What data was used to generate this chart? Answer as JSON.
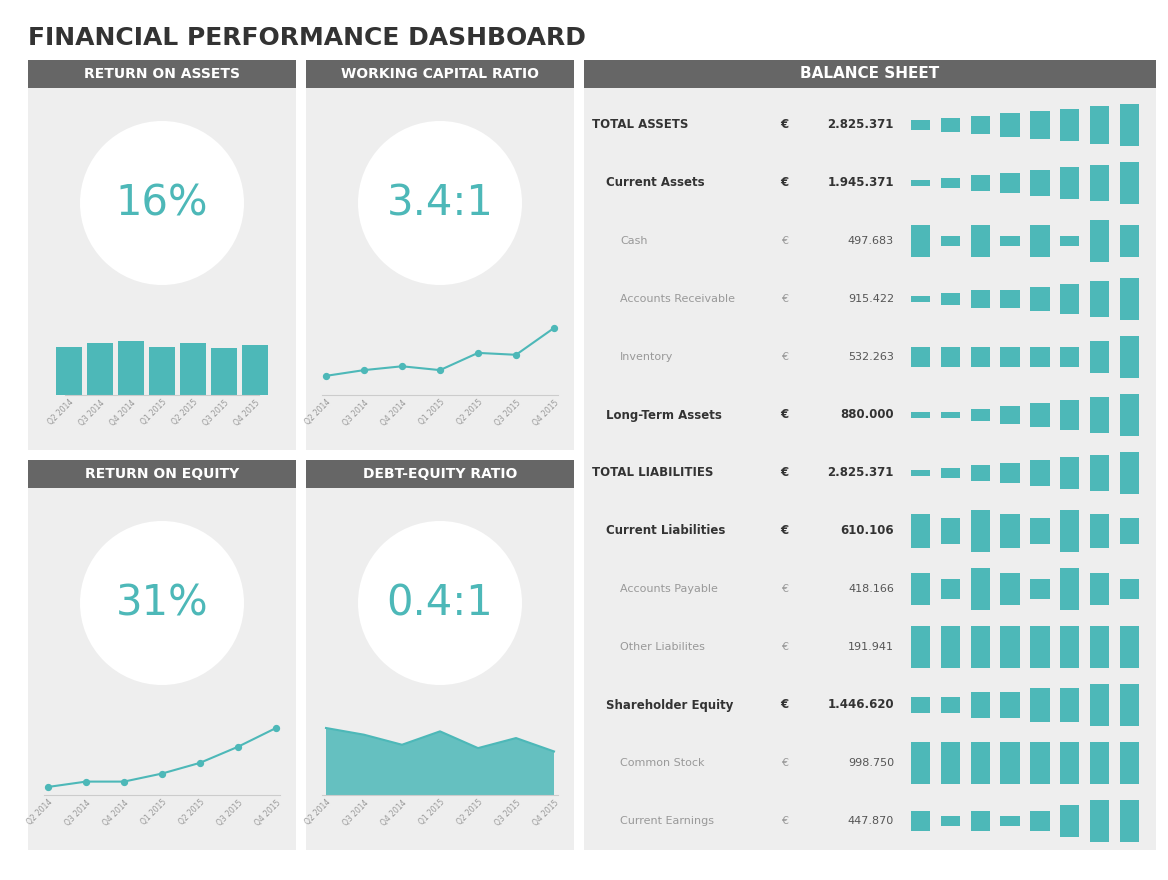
{
  "title": "FINANCIAL PERFORMANCE DASHBOARD",
  "title_color": "#333333",
  "panel_bg": "#eeeeee",
  "header_bg": "#666666",
  "teal_color": "#4db8b8",
  "dark_text": "#333333",
  "gray_text": "#999999",
  "quarters": [
    "Q2 2014",
    "Q3 2014",
    "Q4 2014",
    "Q1 2015",
    "Q2 2015",
    "Q3 2015",
    "Q4 2015"
  ],
  "roa_value": "16%",
  "roa_bars": [
    0.72,
    0.78,
    0.8,
    0.72,
    0.77,
    0.7,
    0.75
  ],
  "wcr_value": "3.4:1",
  "wcr_line": [
    1.0,
    1.3,
    1.5,
    1.3,
    2.2,
    2.1,
    3.5
  ],
  "roe_value": "31%",
  "roe_line": [
    0.3,
    0.5,
    0.5,
    0.8,
    1.2,
    1.8,
    2.5
  ],
  "der_value": "0.4:1",
  "der_area": [
    2.0,
    1.8,
    1.5,
    1.9,
    1.4,
    1.7,
    1.3
  ],
  "balance_sheet": {
    "rows": [
      {
        "label": "TOTAL ASSETS",
        "value": "2.825.371",
        "bold": true,
        "indent": 0,
        "bars": [
          2,
          3,
          4,
          5,
          6,
          7,
          8,
          9
        ]
      },
      {
        "label": "Current Assets",
        "value": "1.945.371",
        "bold": true,
        "indent": 1,
        "bars": [
          1,
          2,
          3,
          4,
          5,
          6,
          7,
          8
        ]
      },
      {
        "label": "Cash",
        "value": "497.683",
        "bold": false,
        "indent": 2,
        "bars": [
          3,
          1,
          3,
          1,
          3,
          1,
          4,
          3
        ]
      },
      {
        "label": "Accounts Receivable",
        "value": "915.422",
        "bold": false,
        "indent": 2,
        "bars": [
          1,
          2,
          3,
          3,
          4,
          5,
          6,
          7
        ]
      },
      {
        "label": "Inventory",
        "value": "532.263",
        "bold": false,
        "indent": 2,
        "bars": [
          2,
          2,
          2,
          2,
          2,
          2,
          3,
          4
        ]
      },
      {
        "label": "Long-Term Assets",
        "value": "880.000",
        "bold": true,
        "indent": 1,
        "bars": [
          1,
          1,
          2,
          3,
          4,
          5,
          6,
          7
        ]
      },
      {
        "label": "TOTAL LIABILITIES",
        "value": "2.825.371",
        "bold": true,
        "indent": 0,
        "bars": [
          1,
          2,
          3,
          4,
          5,
          6,
          7,
          8
        ]
      },
      {
        "label": "Current Liabilities",
        "value": "610.106",
        "bold": true,
        "indent": 1,
        "bars": [
          4,
          3,
          5,
          4,
          3,
          5,
          4,
          3
        ]
      },
      {
        "label": "Accounts Payable",
        "value": "418.166",
        "bold": false,
        "indent": 2,
        "bars": [
          3,
          2,
          4,
          3,
          2,
          4,
          3,
          2
        ]
      },
      {
        "label": "Other Liabilites",
        "value": "191.941",
        "bold": false,
        "indent": 2,
        "bars": [
          4,
          4,
          4,
          4,
          4,
          4,
          4,
          4
        ]
      },
      {
        "label": "Shareholder Equity",
        "value": "1.446.620",
        "bold": true,
        "indent": 1,
        "bars": [
          2,
          2,
          3,
          3,
          4,
          4,
          5,
          5
        ]
      },
      {
        "label": "Common Stock",
        "value": "998.750",
        "bold": false,
        "indent": 2,
        "bars": [
          5,
          5,
          5,
          5,
          5,
          5,
          5,
          5
        ]
      },
      {
        "label": "Current Earnings",
        "value": "447.870",
        "bold": false,
        "indent": 2,
        "bars": [
          2,
          1,
          2,
          1,
          2,
          3,
          4,
          4
        ]
      }
    ]
  }
}
